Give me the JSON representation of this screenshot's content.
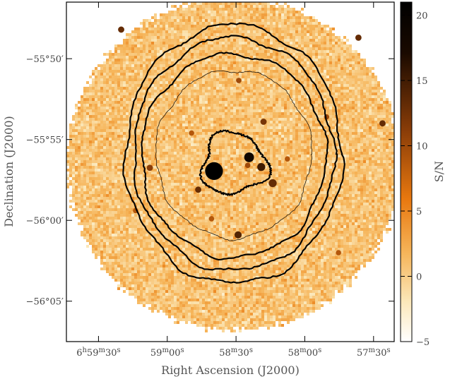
{
  "chart_data": {
    "type": "heatmap",
    "title": "",
    "xlabel": "Right Ascension (J2000)",
    "ylabel": "Declination (J2000)",
    "colorbar_label": "S/N",
    "x_ticks": [
      {
        "h": "6",
        "hs": "h",
        "m": "59",
        "ms": "m",
        "s": "30",
        "ss": "s",
        "ra_sec": 2170
      },
      {
        "h": "",
        "hs": "",
        "m": "59",
        "ms": "m",
        "s": "00",
        "ss": "s",
        "ra_sec": 2140
      },
      {
        "h": "",
        "hs": "",
        "m": "58",
        "ms": "m",
        "s": "30",
        "ss": "s",
        "ra_sec": 2110
      },
      {
        "h": "",
        "hs": "",
        "m": "58",
        "ms": "m",
        "s": "00",
        "ss": "s",
        "ra_sec": 2080
      },
      {
        "h": "",
        "hs": "",
        "m": "57",
        "ms": "m",
        "s": "30",
        "ss": "s",
        "ra_sec": 2050
      }
    ],
    "y_ticks": [
      {
        "label": "−55°50′",
        "dec_arcmin": -50
      },
      {
        "label": "−55°55′",
        "dec_arcmin": -55
      },
      {
        "label": "−56°00′",
        "dec_arcmin": -60
      },
      {
        "label": "−56°05′",
        "dec_arcmin": -65
      }
    ],
    "colorbar_ticks": [
      {
        "label": "20",
        "value": 20
      },
      {
        "label": "15",
        "value": 15
      },
      {
        "label": "10",
        "value": 10
      },
      {
        "label": "5",
        "value": 5
      },
      {
        "label": "0",
        "value": 0
      },
      {
        "label": "−5",
        "value": -5
      }
    ],
    "x_range_ra_sec": [
      2184,
      2041
    ],
    "y_range_dec_arcmin": [
      -46.5,
      -67.5
    ],
    "colorbar_range": [
      -5,
      21
    ],
    "colors": [
      "#ffffff",
      "#fbe7b8",
      "#f6b55a",
      "#e8780f",
      "#8a3d08",
      "#000000"
    ],
    "field_center": {
      "ra_sec": 2111,
      "dec_arcmin": -56.5
    },
    "field_radius_arcmin": 10.3,
    "contours": [
      {
        "name": "outer-1",
        "ra_radius_sec": 47.3,
        "dec_radius_arcmin": 8.0,
        "dec_offset_arcmin": 0.6
      },
      {
        "name": "outer-2",
        "ra_radius_sec": 43.7,
        "dec_radius_arcmin": 7.2,
        "dec_offset_arcmin": 0.6
      },
      {
        "name": "outer-3",
        "ra_radius_sec": 40.3,
        "dec_radius_arcmin": 6.3,
        "dec_offset_arcmin": 0.5
      },
      {
        "name": "inner-thin",
        "ra_radius_sec": 34.0,
        "dec_radius_arcmin": 5.2,
        "dec_offset_arcmin": 0.6
      },
      {
        "name": "core",
        "ra_radius_sec": 14.0,
        "dec_radius_arcmin": 1.9,
        "dec_offset_arcmin": 0.0
      }
    ],
    "sources": [
      {
        "ra_sec": 2119.6,
        "dec_arcmin": -56.95,
        "snr": 21,
        "size": 1.0
      },
      {
        "ra_sec": 2104.3,
        "dec_arcmin": -56.1,
        "snr": 18,
        "size": 0.55
      },
      {
        "ra_sec": 2099.0,
        "dec_arcmin": -56.7,
        "snr": 14,
        "size": 0.45
      },
      {
        "ra_sec": 2094.0,
        "dec_arcmin": -57.7,
        "snr": 12,
        "size": 0.45
      },
      {
        "ra_sec": 2109.1,
        "dec_arcmin": -60.9,
        "snr": 13,
        "size": 0.4
      },
      {
        "ra_sec": 2147.6,
        "dec_arcmin": -56.75,
        "snr": 10,
        "size": 0.35
      },
      {
        "ra_sec": 2098.0,
        "dec_arcmin": -53.9,
        "snr": 11,
        "size": 0.35
      },
      {
        "ra_sec": 2126.5,
        "dec_arcmin": -58.1,
        "snr": 12,
        "size": 0.35
      },
      {
        "ra_sec": 2160.1,
        "dec_arcmin": -48.2,
        "snr": 12,
        "size": 0.35
      },
      {
        "ra_sec": 2046.1,
        "dec_arcmin": -54.0,
        "snr": 12,
        "size": 0.35
      },
      {
        "ra_sec": 2108.8,
        "dec_arcmin": -51.35,
        "snr": 9,
        "size": 0.3
      },
      {
        "ra_sec": 2070.5,
        "dec_arcmin": -53.6,
        "snr": 9,
        "size": 0.3
      },
      {
        "ra_sec": 2129.4,
        "dec_arcmin": -54.6,
        "snr": 8,
        "size": 0.3
      },
      {
        "ra_sec": 2104.9,
        "dec_arcmin": -56.6,
        "snr": 9,
        "size": 0.3
      },
      {
        "ra_sec": 2087.6,
        "dec_arcmin": -56.2,
        "snr": 8,
        "size": 0.3
      },
      {
        "ra_sec": 2120.7,
        "dec_arcmin": -59.9,
        "snr": 8,
        "size": 0.3
      },
      {
        "ra_sec": 2065.3,
        "dec_arcmin": -62.0,
        "snr": 8,
        "size": 0.3
      },
      {
        "ra_sec": 2153.8,
        "dec_arcmin": -59.4,
        "snr": 8,
        "size": 0.3
      },
      {
        "ra_sec": 2056.6,
        "dec_arcmin": -48.7,
        "snr": 12,
        "size": 0.35
      }
    ]
  }
}
